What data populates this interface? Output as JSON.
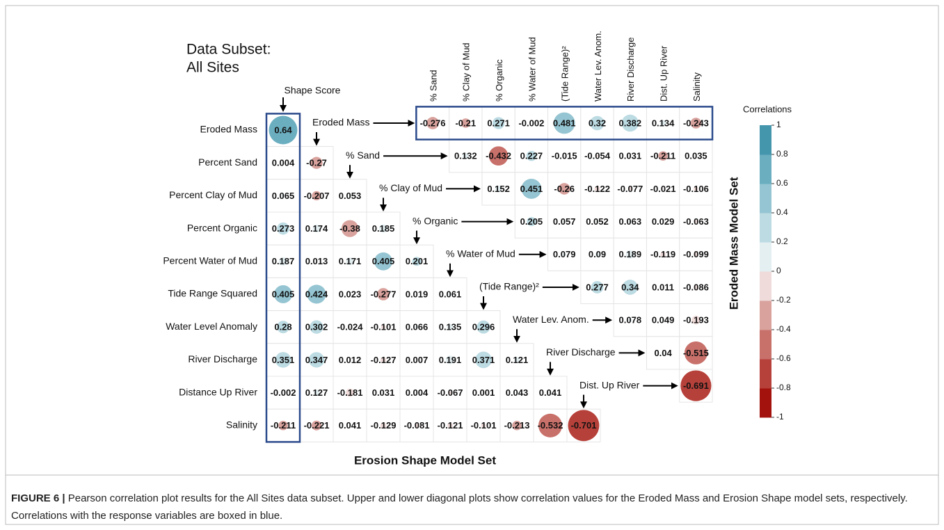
{
  "chart_data": {
    "type": "correlation",
    "title": [
      "Data Subset:",
      "All Sites"
    ],
    "row_labels": [
      "Eroded Mass",
      "Percent Sand",
      "Percent Clay of Mud",
      "Percent Organic",
      "Percent Water of Mud",
      "Tide Range Squared",
      "Water Level Anomaly",
      "River Discharge",
      "Distance Up River",
      "Salinity"
    ],
    "shape_label": "Shape Score",
    "lower": {
      "name": "Erosion Shape Model Set",
      "diagonal_labels": [
        "Eroded Mass",
        "% Sand",
        "% Clay of Mud",
        "% Organic",
        "% Water of Mud",
        "(Tide Range)²",
        "Water Lev. Anom.",
        "River Discharge",
        "Dist. Up River"
      ],
      "values": [
        [
          0.64
        ],
        [
          0.004,
          -0.27
        ],
        [
          0.065,
          -0.207,
          0.053
        ],
        [
          0.273,
          0.174,
          -0.38,
          0.185
        ],
        [
          0.187,
          0.013,
          0.171,
          0.405,
          0.201
        ],
        [
          0.405,
          0.424,
          0.023,
          -0.277,
          0.019,
          0.061
        ],
        [
          0.28,
          0.302,
          -0.024,
          -0.101,
          0.066,
          0.135,
          0.296
        ],
        [
          0.351,
          0.347,
          0.012,
          -0.127,
          0.007,
          0.191,
          0.371,
          0.121
        ],
        [
          -0.002,
          0.127,
          -0.181,
          0.031,
          0.004,
          -0.067,
          0.001,
          0.043,
          0.041
        ],
        [
          -0.211,
          -0.221,
          0.041,
          -0.129,
          -0.081,
          -0.121,
          -0.101,
          -0.213,
          -0.532,
          -0.701
        ]
      ]
    },
    "upper": {
      "name": "Eroded Mass Model Set",
      "column_labels": [
        "% Sand",
        "% Clay of Mud",
        "% Organic",
        "% Water of Mud",
        "(Tide Range)²",
        "Water Lev. Anom.",
        "River Discharge",
        "Dist. Up River",
        "Salinity"
      ],
      "values": [
        [
          -0.276,
          -0.21,
          0.271,
          -0.002,
          0.481,
          0.32,
          0.382,
          0.134,
          -0.243
        ],
        [
          0.132,
          -0.432,
          0.227,
          -0.015,
          -0.054,
          0.031,
          -0.211,
          0.035
        ],
        [
          0.152,
          0.451,
          -0.26,
          -0.122,
          -0.077,
          -0.021,
          -0.106
        ],
        [
          0.205,
          0.057,
          0.052,
          0.063,
          0.029,
          -0.063
        ],
        [
          0.079,
          0.09,
          0.189,
          -0.119,
          -0.099
        ],
        [
          0.277,
          0.34,
          0.011,
          -0.086
        ],
        [
          0.078,
          0.049,
          -0.193
        ],
        [
          0.04,
          -0.515
        ],
        [
          -0.691
        ]
      ]
    },
    "colorbar": {
      "title": "Correlations",
      "lim": [
        -1,
        1
      ],
      "ticks": [
        1,
        0.8,
        0.6,
        0.4,
        0.2,
        0,
        -0.2,
        -0.4,
        -0.6,
        -0.8,
        -1
      ],
      "colors": [
        "#a3120c",
        "#b6413a",
        "#c8706a",
        "#d9a29d",
        "#efdbd9",
        "#e4eff2",
        "#bcdbe3",
        "#95c5d2",
        "#6aaec0",
        "#4496ad"
      ]
    },
    "box_color": "#2b4a8c"
  },
  "caption": {
    "label": "FIGURE 6 |",
    "text": "Pearson correlation plot results for the All Sites data subset. Upper and lower diagonal plots show correlation values for the Eroded Mass and Erosion Shape model sets, respectively. Correlations with the response variables are boxed in blue."
  }
}
